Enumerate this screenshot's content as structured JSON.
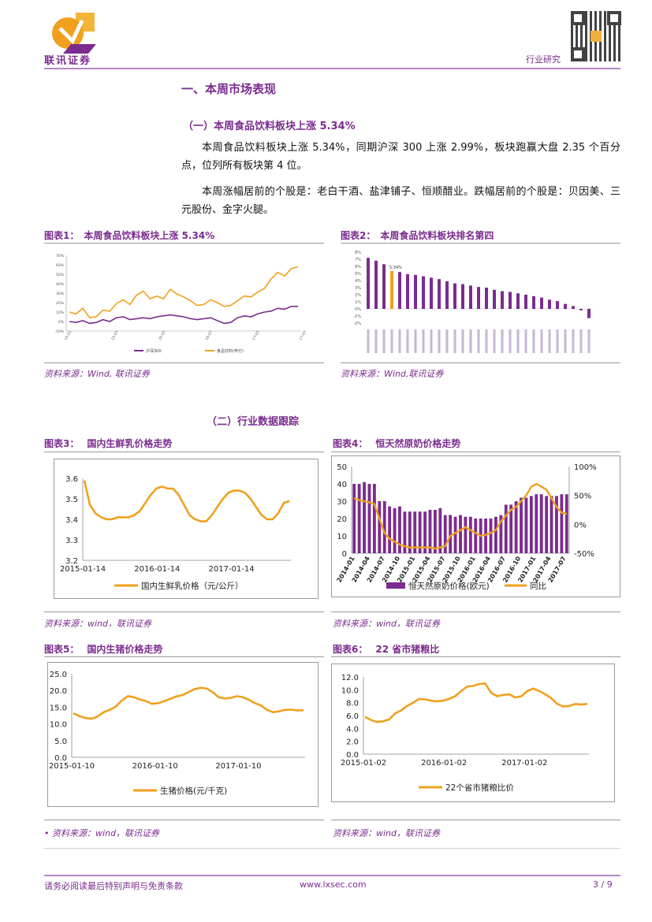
{
  "header": {
    "logo_text": "联讯证券",
    "category": "行业研究"
  },
  "section": {
    "title": "一、本周市场表现",
    "sub1": "（一）本周食品饮料板块上涨 5.34%",
    "para1": "本周食品饮料板块上涨 5.34%，同期沪深 300 上涨 2.99%，板块跑赢大盘 2.35 个百分点，位列所有板块第 4 位。",
    "para2": "本周涨幅居前的个股是：老白干酒、盐津铺子、恒顺醋业。跌幅居前的个股是：贝因美、三元股份、金字火腿。",
    "sub2": "（二）行业数据跟踪"
  },
  "figures": {
    "fig1": {
      "prefix": "图表1：",
      "title": "本周食品饮料板块上涨 5.34%",
      "source": "资料来源：Wind, 联讯证券"
    },
    "fig2": {
      "prefix": "图表2：",
      "title": "本周食品饮料板块排名第四",
      "source": "资料来源：Wind,联讯证券"
    },
    "fig3": {
      "prefix": "图表3：",
      "title": "国内生鲜乳价格走势",
      "source": "资料来源：wind，联讯证券"
    },
    "fig4": {
      "prefix": "图表4：",
      "title": "恒天然原奶价格走势",
      "source": "资料来源：wind，联讯证券"
    },
    "fig5": {
      "prefix": "图表5：",
      "title": "国内生猪价格走势",
      "source": "• 资料来源：wind，联讯证券"
    },
    "fig6": {
      "prefix": "图表6：",
      "title": "22 省市猪粮比",
      "source": "资料来源：wind，联讯证券"
    }
  },
  "chart_data": [
    {
      "id": "fig1",
      "type": "line",
      "title": "本周食品饮料板块上涨 5.34%",
      "y_ticks": [
        "70%",
        "60%",
        "50%",
        "40%",
        "30%",
        "20%",
        "10%",
        "0%",
        "-10%"
      ],
      "x_ticks": [
        "15-01",
        "15-07",
        "16-01",
        "16-07",
        "17-01",
        "17-07"
      ],
      "legend": [
        "沪深300",
        "食品饮料(申万)"
      ],
      "series": [
        {
          "name": "沪深300",
          "color": "#7b2c8f",
          "values": [
            0,
            -1,
            1,
            -2,
            -1,
            2,
            0,
            4,
            5,
            2,
            3,
            4,
            3,
            5,
            6,
            7,
            6,
            5,
            3,
            2,
            3,
            4,
            1,
            -2,
            -1,
            4,
            6,
            5,
            8,
            10,
            11,
            14,
            13,
            16,
            16
          ]
        },
        {
          "name": "食品饮料(申万)",
          "color": "#f0a01e",
          "values": [
            10,
            8,
            14,
            4,
            5,
            12,
            11,
            19,
            23,
            18,
            28,
            32,
            24,
            27,
            24,
            34,
            29,
            26,
            22,
            17,
            18,
            23,
            20,
            16,
            17,
            22,
            27,
            26,
            31,
            35,
            45,
            52,
            48,
            56,
            58
          ]
        }
      ]
    },
    {
      "id": "fig2",
      "type": "bar",
      "title": "本周食品饮料板块排名第四",
      "y_ticks": [
        "8%",
        "7%",
        "6%",
        "5%",
        "4%",
        "3%",
        "2%",
        "1%",
        "0%",
        "-1%",
        "-2%"
      ],
      "highlight_label": "5.34%",
      "highlight_index": 3,
      "values": [
        7.2,
        6.8,
        6.3,
        5.34,
        5.2,
        4.9,
        4.8,
        4.6,
        4.4,
        4.2,
        3.9,
        3.6,
        3.5,
        3.3,
        3.1,
        3.0,
        2.7,
        2.5,
        2.4,
        2.2,
        2.0,
        1.8,
        1.6,
        1.3,
        1.1,
        0.7,
        0.4,
        -0.2,
        -1.3
      ],
      "colors": {
        "normal": "#7b2c8f",
        "highlight": "#f0a01e"
      }
    },
    {
      "id": "fig3",
      "type": "line",
      "title": "国内生鲜乳价格走势",
      "ylim": [
        3.2,
        3.6
      ],
      "y_ticks": [
        "3.6",
        "3.5",
        "3.4",
        "3.3",
        "3.2"
      ],
      "x_ticks": [
        "2015-01-14",
        "2016-01-14",
        "2017-01-14"
      ],
      "legend": [
        "国内生鲜乳价格（元/公斤）"
      ],
      "series": [
        {
          "name": "国内生鲜乳价格（元/公斤）",
          "color": "#f0a01e",
          "values": [
            3.59,
            3.47,
            3.43,
            3.41,
            3.4,
            3.4,
            3.41,
            3.41,
            3.41,
            3.42,
            3.44,
            3.48,
            3.52,
            3.55,
            3.56,
            3.55,
            3.55,
            3.52,
            3.47,
            3.42,
            3.4,
            3.39,
            3.39,
            3.42,
            3.46,
            3.5,
            3.53,
            3.54,
            3.54,
            3.53,
            3.5,
            3.46,
            3.42,
            3.4,
            3.4,
            3.43,
            3.48,
            3.49
          ]
        }
      ]
    },
    {
      "id": "fig4",
      "type": "bar+line",
      "title": "恒天然原奶价格走势",
      "y_left": [
        "50",
        "40",
        "30",
        "20",
        "10",
        "0"
      ],
      "y_right": [
        "100%",
        "50%",
        "0%",
        "-50%"
      ],
      "x_ticks": [
        "2014-01",
        "2014-04",
        "2014-07",
        "2014-10",
        "2015-01",
        "2015-04",
        "2015-07",
        "2015-10",
        "2016-01",
        "2016-04",
        "2016-07",
        "2016-10",
        "2017-01",
        "2017-04",
        "2017-07"
      ],
      "legend": [
        "恒天然原奶价格(欧元)",
        "同比"
      ],
      "bars": [
        40,
        40,
        41,
        40,
        40,
        30,
        30,
        27,
        26,
        27,
        24,
        24,
        24,
        24,
        24,
        25,
        25,
        26,
        22,
        22,
        21,
        22,
        21,
        21,
        20,
        20,
        20,
        20,
        21,
        22,
        28,
        28,
        30,
        32,
        32,
        33,
        34,
        34,
        33,
        33,
        33,
        34,
        34
      ],
      "line": [
        45,
        42,
        40,
        38,
        35,
        10,
        -15,
        -25,
        -30,
        -35,
        -38,
        -40,
        -40,
        -40,
        -40,
        -40,
        -42,
        -40,
        -38,
        -20,
        -15,
        -10,
        -5,
        -10,
        -15,
        -20,
        -18,
        -15,
        -10,
        5,
        15,
        25,
        30,
        40,
        50,
        65,
        70,
        65,
        60,
        45,
        30,
        20,
        18
      ],
      "colors": {
        "bars": "#7b2c8f",
        "line": "#f0a01e"
      }
    },
    {
      "id": "fig5",
      "type": "line",
      "title": "国内生猪价格走势",
      "ylim": [
        0,
        25
      ],
      "y_ticks": [
        "25.0",
        "20.0",
        "15.0",
        "10.0",
        "5.0",
        "0.0"
      ],
      "x_ticks": [
        "2015-01-10",
        "2016-01-10",
        "2017-01-10"
      ],
      "legend": [
        "生猪价格(元/千克)"
      ],
      "series": [
        {
          "name": "生猪价格(元/千克)",
          "color": "#f0a01e",
          "values": [
            13.2,
            12.3,
            11.8,
            11.5,
            12.2,
            13.5,
            14.2,
            15.2,
            17.0,
            18.3,
            18.0,
            17.3,
            16.8,
            16.0,
            16.2,
            16.8,
            17.5,
            18.2,
            18.6,
            19.5,
            20.4,
            20.8,
            20.6,
            19.5,
            18.0,
            17.6,
            17.8,
            18.3,
            18.0,
            17.2,
            16.2,
            15.5,
            14.2,
            13.5,
            13.8,
            14.2,
            14.3,
            14.0,
            14.1
          ]
        }
      ]
    },
    {
      "id": "fig6",
      "type": "line",
      "title": "22 省市猪粮比",
      "ylim": [
        0,
        12
      ],
      "y_ticks": [
        "12.0",
        "10.0",
        "8.0",
        "6.0",
        "4.0",
        "2.0",
        "0.0"
      ],
      "x_ticks": [
        "2015-01-02",
        "2016-01-02",
        "2017-01-02"
      ],
      "legend": [
        "22个省市猪粮比价"
      ],
      "series": [
        {
          "name": "22个省市猪粮比价",
          "color": "#f0a01e",
          "values": [
            5.8,
            5.3,
            5.0,
            5.1,
            5.4,
            6.3,
            6.8,
            7.5,
            8.0,
            8.6,
            8.5,
            8.3,
            8.2,
            8.3,
            8.6,
            9.0,
            9.8,
            10.5,
            10.6,
            10.9,
            11.0,
            9.5,
            9.0,
            9.2,
            9.3,
            8.8,
            9.0,
            9.8,
            10.2,
            9.8,
            9.3,
            8.7,
            7.8,
            7.4,
            7.5,
            7.8,
            7.7,
            7.8
          ]
        }
      ]
    }
  ],
  "footer": {
    "disclaimer": "请务必阅读最后特别声明与免责条款",
    "website": "www.lxsec.com",
    "page": "3 / 9"
  }
}
